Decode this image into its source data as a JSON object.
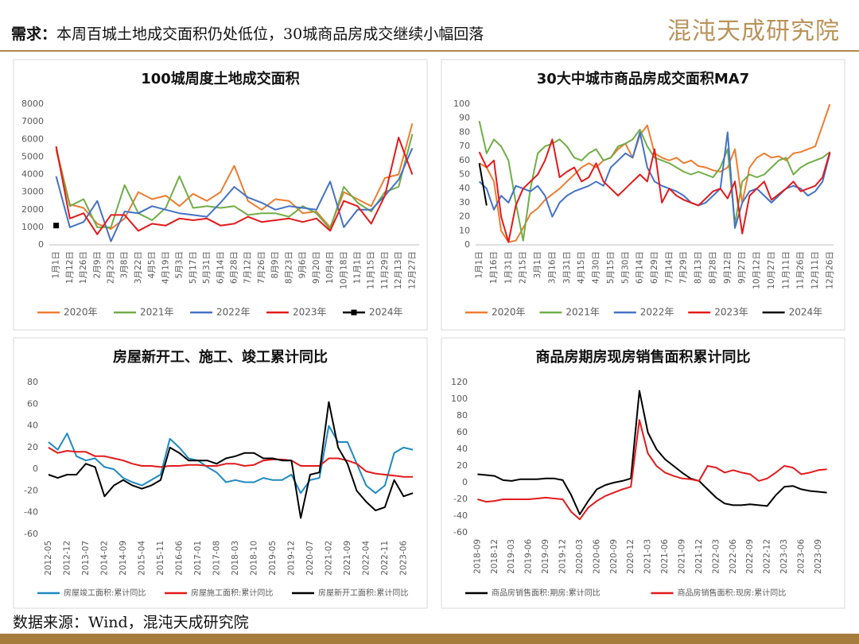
{
  "header": {
    "label": "需求：",
    "title": "本周百城土地成交面积仍处低位，30城商品房成交继续小幅回落",
    "logo": "混沌天成研究院"
  },
  "footer": {
    "source": "数据来源：Wind，混沌天成研究院"
  },
  "chart_data": [
    {
      "type": "line",
      "title": "100城周度土地成交面积",
      "categories": [
        "1月1日",
        "1月12日",
        "1月26日",
        "2月9日",
        "2月23日",
        "3月8日",
        "3月22日",
        "4月5日",
        "4月19日",
        "5月3日",
        "5月17日",
        "5月31日",
        "6月14日",
        "6月28日",
        "7月12日",
        "7月26日",
        "8月9日",
        "8月23日",
        "9月6日",
        "9月20日",
        "10月4日",
        "10月18日",
        "11月1日",
        "11月15日",
        "11月29日",
        "12月13日",
        "12月27日"
      ],
      "ylim": [
        0,
        8000
      ],
      "yticks": [
        0,
        1000,
        2000,
        3000,
        4000,
        5000,
        6000,
        7000,
        8000
      ],
      "series": [
        {
          "name": "2020年",
          "color": "#ED7D31",
          "values": [
            5500,
            2300,
            2100,
            1200,
            900,
            1500,
            3000,
            2600,
            2800,
            2200,
            2900,
            2500,
            3000,
            4500,
            2500,
            2000,
            2600,
            2500,
            1800,
            1900,
            1000,
            3000,
            2600,
            2200,
            3800,
            4000,
            6900
          ]
        },
        {
          "name": "2021年",
          "color": "#70AD47",
          "values": [
            5400,
            2200,
            2600,
            1000,
            1000,
            3400,
            1800,
            1400,
            2100,
            3900,
            2100,
            2200,
            2100,
            2200,
            1700,
            1800,
            1800,
            1600,
            2200,
            1800,
            900,
            3300,
            2400,
            1900,
            3000,
            3300,
            6300
          ]
        },
        {
          "name": "2022年",
          "color": "#4472C4",
          "values": [
            3900,
            1000,
            1300,
            2500,
            200,
            1900,
            1800,
            2200,
            2000,
            1800,
            1700,
            1600,
            2400,
            3300,
            2700,
            2400,
            2000,
            2200,
            2100,
            2000,
            3600,
            1000,
            2000,
            2000,
            2800,
            3700,
            5500
          ]
        },
        {
          "name": "2023年",
          "color": "#E31A1C",
          "values": [
            5600,
            1500,
            1800,
            600,
            1700,
            1700,
            800,
            1200,
            1100,
            1500,
            1400,
            1500,
            1100,
            1200,
            1600,
            1300,
            1400,
            1500,
            1300,
            1500,
            800,
            2500,
            2200,
            1200,
            2800,
            6100,
            4000
          ]
        },
        {
          "name": "2024年",
          "color": "#000000",
          "marker": "square",
          "values": [
            1100,
            null,
            null,
            null,
            null,
            null,
            null,
            null,
            null,
            null,
            null,
            null,
            null,
            null,
            null,
            null,
            null,
            null,
            null,
            null,
            null,
            null,
            null,
            null,
            null,
            null,
            null
          ]
        }
      ]
    },
    {
      "type": "line",
      "title": "30大中城市商品房成交面积MA7",
      "categories": [
        "1月1日",
        null,
        "1月16日",
        null,
        "1月31日",
        null,
        "2月15日",
        null,
        "3月1日",
        null,
        "3月16日",
        null,
        "3月31日",
        null,
        "4月15日",
        null,
        "4月30日",
        null,
        "5月15日",
        null,
        "5月30日",
        null,
        "6月14日",
        null,
        "6月29日",
        null,
        "7月14日",
        null,
        "7月29日",
        null,
        "8月13日",
        null,
        "8月28日",
        null,
        "9月12日",
        null,
        "9月27日",
        null,
        "10月12日",
        null,
        "10月27日",
        null,
        "11月11日",
        null,
        "11月26日",
        null,
        "12月11日",
        null,
        "12月26日"
      ],
      "ylim": [
        0,
        100
      ],
      "yticks": [
        0,
        10,
        20,
        30,
        40,
        50,
        60,
        70,
        80,
        90,
        100
      ],
      "series": [
        {
          "name": "2020年",
          "color": "#ED7D31",
          "values": [
            58,
            55,
            45,
            10,
            2,
            3,
            12,
            22,
            26,
            32,
            36,
            40,
            45,
            50,
            55,
            58,
            55,
            60,
            62,
            68,
            72,
            62,
            78,
            85,
            65,
            62,
            60,
            62,
            58,
            60,
            56,
            55,
            53,
            52,
            55,
            68,
            30,
            55,
            62,
            65,
            62,
            63,
            60,
            65,
            66,
            68,
            70,
            85,
            100
          ]
        },
        {
          "name": "2021年",
          "color": "#70AD47",
          "values": [
            88,
            65,
            75,
            70,
            60,
            30,
            3,
            40,
            65,
            70,
            72,
            75,
            70,
            62,
            60,
            65,
            68,
            60,
            62,
            70,
            72,
            75,
            82,
            70,
            62,
            60,
            58,
            55,
            52,
            50,
            52,
            50,
            48,
            55,
            68,
            15,
            45,
            50,
            48,
            50,
            55,
            60,
            62,
            50,
            55,
            58,
            60,
            62,
            66
          ]
        },
        {
          "name": "2022年",
          "color": "#4472C4",
          "values": [
            45,
            40,
            25,
            35,
            30,
            42,
            40,
            38,
            42,
            35,
            20,
            30,
            35,
            38,
            40,
            42,
            45,
            42,
            55,
            60,
            65,
            62,
            80,
            55,
            45,
            42,
            40,
            38,
            35,
            30,
            28,
            30,
            35,
            40,
            80,
            12,
            30,
            38,
            40,
            35,
            30,
            35,
            40,
            42,
            40,
            35,
            38,
            45,
            65
          ]
        },
        {
          "name": "2023年",
          "color": "#E31A1C",
          "values": [
            66,
            55,
            60,
            20,
            2,
            28,
            40,
            45,
            50,
            60,
            75,
            48,
            52,
            55,
            45,
            48,
            58,
            45,
            40,
            35,
            40,
            45,
            50,
            45,
            68,
            30,
            40,
            35,
            32,
            30,
            28,
            33,
            38,
            40,
            33,
            45,
            8,
            35,
            40,
            45,
            32,
            36,
            40,
            45,
            38,
            40,
            42,
            48,
            66
          ]
        },
        {
          "name": "2024年",
          "color": "#000000",
          "values": [
            58,
            28,
            null,
            null,
            null,
            null,
            null,
            null,
            null,
            null,
            null,
            null,
            null,
            null,
            null,
            null,
            null,
            null,
            null,
            null,
            null,
            null,
            null,
            null,
            null,
            null,
            null,
            null,
            null,
            null,
            null,
            null,
            null,
            null,
            null,
            null,
            null,
            null,
            null,
            null,
            null,
            null,
            null,
            null,
            null,
            null,
            null,
            null,
            null
          ]
        }
      ]
    },
    {
      "type": "line",
      "title": "房屋新开工、施工、竣工累计同比",
      "categories": [
        "2012-05",
        null,
        "2012-12",
        null,
        "2013-07",
        null,
        "2014-02",
        null,
        "2014-09",
        null,
        "2015-04",
        null,
        "2015-11",
        null,
        "2016-06",
        null,
        "2017-01",
        null,
        "2017-08",
        null,
        "2018-03",
        null,
        "2018-10",
        null,
        "2019-05",
        null,
        "2019-12",
        null,
        "2020-07",
        null,
        "2021-02",
        null,
        "2021-09",
        null,
        "2022-04",
        null,
        "2022-11",
        null,
        "2023-06",
        null
      ],
      "ylim": [
        -60,
        80
      ],
      "yticks": [
        -60,
        -40,
        -20,
        0,
        20,
        40,
        60,
        80
      ],
      "series": [
        {
          "name": "房屋竣工面积:累计同比",
          "color": "#1F8AC0",
          "values": [
            25,
            18,
            33,
            12,
            8,
            10,
            2,
            0,
            -8,
            -12,
            -15,
            -10,
            -5,
            28,
            20,
            10,
            8,
            2,
            -3,
            -12,
            -10,
            -12,
            -12,
            -8,
            -10,
            -10,
            -5,
            -22,
            -10,
            -8,
            40,
            25,
            25,
            5,
            -15,
            -22,
            -15,
            15,
            20,
            18
          ]
        },
        {
          "name": "房屋施工面积:累计同比",
          "color": "#E31A1C",
          "values": [
            20,
            15,
            17,
            16,
            16,
            12,
            12,
            10,
            8,
            5,
            3,
            3,
            2,
            3,
            3,
            4,
            4,
            3,
            3,
            5,
            5,
            3,
            4,
            8,
            9,
            9,
            8,
            3,
            3,
            3,
            10,
            10,
            8,
            5,
            -2,
            -4,
            -5,
            -6,
            -7,
            -7
          ]
        },
        {
          "name": "房屋新开工面积:累计同比",
          "color": "#000000",
          "values": [
            -5,
            -8,
            -5,
            -5,
            5,
            2,
            -25,
            -15,
            -10,
            -15,
            -18,
            -15,
            -10,
            20,
            15,
            8,
            8,
            8,
            5,
            10,
            12,
            15,
            15,
            10,
            10,
            8,
            8,
            -45,
            -5,
            -3,
            62,
            20,
            5,
            -20,
            -30,
            -38,
            -35,
            -10,
            -25,
            -22
          ]
        }
      ]
    },
    {
      "type": "line",
      "title": "商品房期房现房销售面积累计同比",
      "categories": [
        "2018-09",
        null,
        "2018-12",
        null,
        "2019-03",
        null,
        "2019-06",
        null,
        "2019-09",
        null,
        "2019-12",
        null,
        "2020-03",
        null,
        "2020-06",
        null,
        "2020-09",
        null,
        "2020-12",
        null,
        "2021-03",
        null,
        "2021-06",
        null,
        "2021-09",
        null,
        "2021-12",
        null,
        "2022-03",
        null,
        "2022-06",
        null,
        "2022-09",
        null,
        "2022-12",
        null,
        "2023-03",
        null,
        "2023-06",
        null,
        "2023-09",
        null
      ],
      "ylim": [
        -60,
        120
      ],
      "yticks": [
        -60,
        -40,
        -20,
        0,
        20,
        40,
        60,
        80,
        100,
        120
      ],
      "series": [
        {
          "name": "商品房销售面积:期房:累计同比",
          "color": "#000000",
          "values": [
            10,
            9,
            8,
            3,
            2,
            4,
            4,
            4,
            5,
            5,
            3,
            -15,
            -38,
            -22,
            -8,
            -3,
            0,
            2,
            5,
            110,
            60,
            40,
            28,
            20,
            12,
            5,
            2,
            -8,
            -18,
            -25,
            -27,
            -27,
            -26,
            -27,
            -28,
            -15,
            -5,
            -4,
            -8,
            -10,
            -11,
            -12
          ]
        },
        {
          "name": "商品房销售面积:现房:累计同比",
          "color": "#E31A1C",
          "values": [
            -20,
            -23,
            -22,
            -20,
            -20,
            -20,
            -20,
            -19,
            -18,
            -19,
            -20,
            -35,
            -44,
            -30,
            -22,
            -16,
            -12,
            -8,
            -5,
            75,
            35,
            20,
            12,
            8,
            5,
            4,
            2,
            20,
            18,
            12,
            15,
            12,
            10,
            2,
            5,
            12,
            20,
            18,
            10,
            12,
            15,
            16
          ]
        }
      ]
    }
  ]
}
